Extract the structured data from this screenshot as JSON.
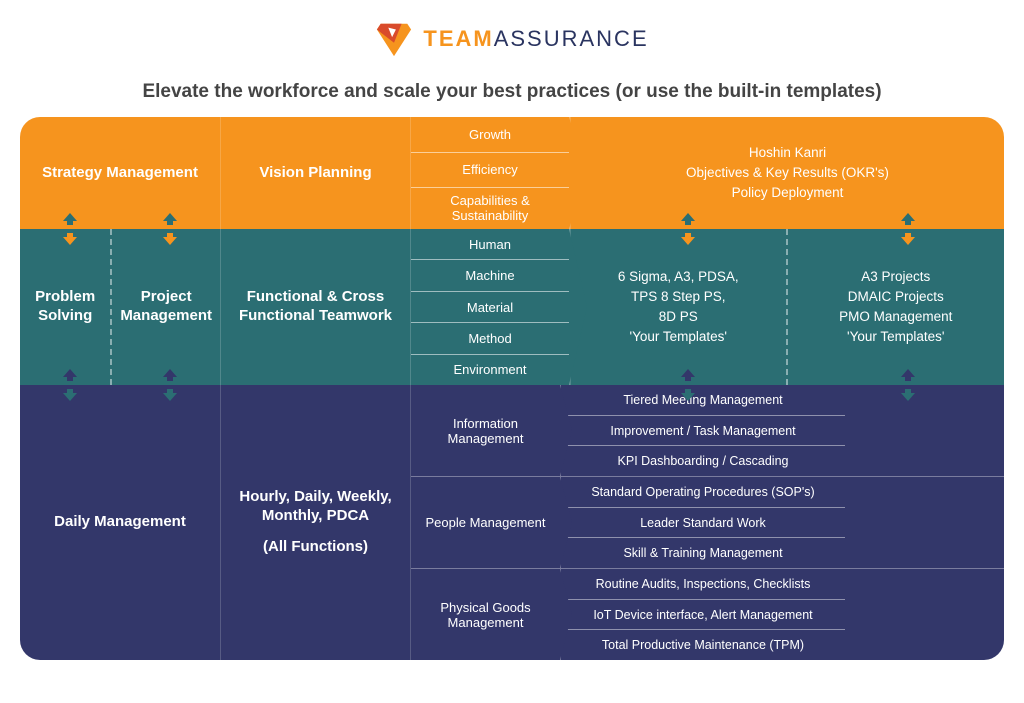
{
  "brand": {
    "team": "TEAM",
    "assurance": "ASSURANCE"
  },
  "subtitle": "Elevate the workforce and scale your best practices (or use the built-in templates)",
  "colors": {
    "row1": "#f6941e",
    "row2": "#2b6e73",
    "row3": "#33376a",
    "subtitle": "#444444",
    "logo_orange": "#f6941e",
    "logo_navy": "#2a3460"
  },
  "row1": {
    "col1": "Strategy Management",
    "col2": "Vision Planning",
    "col3": [
      "Growth",
      "Efficiency",
      "Capabilities & Sustainability"
    ],
    "col4": [
      "Hoshin Kanri",
      "Objectives & Key Results (OKR's)",
      "Policy Deployment"
    ]
  },
  "row2": {
    "col1_left": "Problem Solving",
    "col1_right": "Project Management",
    "col2": "Functional & Cross Functional Teamwork",
    "col3": [
      "Human",
      "Machine",
      "Material",
      "Method",
      "Environment"
    ],
    "col4_left": [
      "6 Sigma, A3, PDSA,",
      "TPS 8 Step PS,",
      "8D PS",
      "'Your Templates'"
    ],
    "col4_right": [
      "A3 Projects",
      "DMAIC Projects",
      "PMO Management",
      "'Your Templates'"
    ]
  },
  "row3": {
    "col1": "Daily Management",
    "col2_l1": "Hourly, Daily, Weekly, Monthly, PDCA",
    "col2_l2": "(All Functions)",
    "blocks": [
      {
        "label": "Information Management",
        "items": [
          "Tiered Meeting Management",
          "Improvement / Task Management",
          "KPI Dashboarding / Cascading"
        ]
      },
      {
        "label": "People Management",
        "items": [
          "Standard Operating Procedures (SOP's)",
          "Leader Standard Work",
          "Skill & Training Management"
        ]
      },
      {
        "label": "Physical Goods Management",
        "items": [
          "Routine Audits, Inspections, Checklists",
          "IoT Device interface, Alert Management",
          "Total Productive Maintenance (TPM)"
        ]
      }
    ]
  }
}
